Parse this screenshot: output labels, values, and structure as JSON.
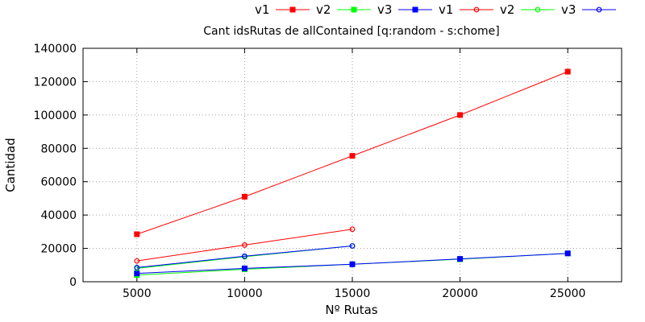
{
  "chart_data": {
    "type": "line",
    "title": "Cant idsRutas de allContained [q:random - s:chome]",
    "xlabel": "Nº Rutas",
    "ylabel": "Cantidad",
    "xlim": [
      2500,
      27500
    ],
    "ylim": [
      0,
      140000
    ],
    "xticks": [
      5000,
      10000,
      15000,
      20000,
      25000
    ],
    "yticks": [
      0,
      20000,
      40000,
      60000,
      80000,
      100000,
      120000,
      140000
    ],
    "grid": true,
    "legend_position": "top-right, outside plot",
    "series": [
      {
        "name": "v1",
        "color": "#ff0000",
        "marker": "filled-square",
        "x": [
          5000,
          10000,
          15000,
          20000,
          25000
        ],
        "y": [
          28500,
          51000,
          75500,
          100000,
          126000
        ]
      },
      {
        "name": "v2",
        "color": "#00ff00",
        "marker": "filled-square",
        "x": [
          5000,
          10000,
          15000,
          20000,
          25000
        ],
        "y": [
          4000,
          7500,
          10500,
          13500,
          17000
        ]
      },
      {
        "name": "v3",
        "color": "#0000ff",
        "marker": "filled-square",
        "x": [
          5000,
          10000,
          15000,
          20000,
          25000
        ],
        "y": [
          5000,
          8000,
          10500,
          13700,
          17000
        ]
      },
      {
        "name": "v1",
        "color": "#ff0000",
        "marker": "open-circle",
        "x": [
          5000,
          10000,
          15000
        ],
        "y": [
          12500,
          22000,
          31500
        ]
      },
      {
        "name": "v2",
        "color": "#00ff00",
        "marker": "open-circle",
        "x": [
          5000,
          10000,
          15000
        ],
        "y": [
          8000,
          15000,
          21500
        ]
      },
      {
        "name": "v3",
        "color": "#0000ff",
        "marker": "open-circle",
        "x": [
          5000,
          10000,
          15000
        ],
        "y": [
          8500,
          15300,
          21500
        ]
      }
    ]
  }
}
